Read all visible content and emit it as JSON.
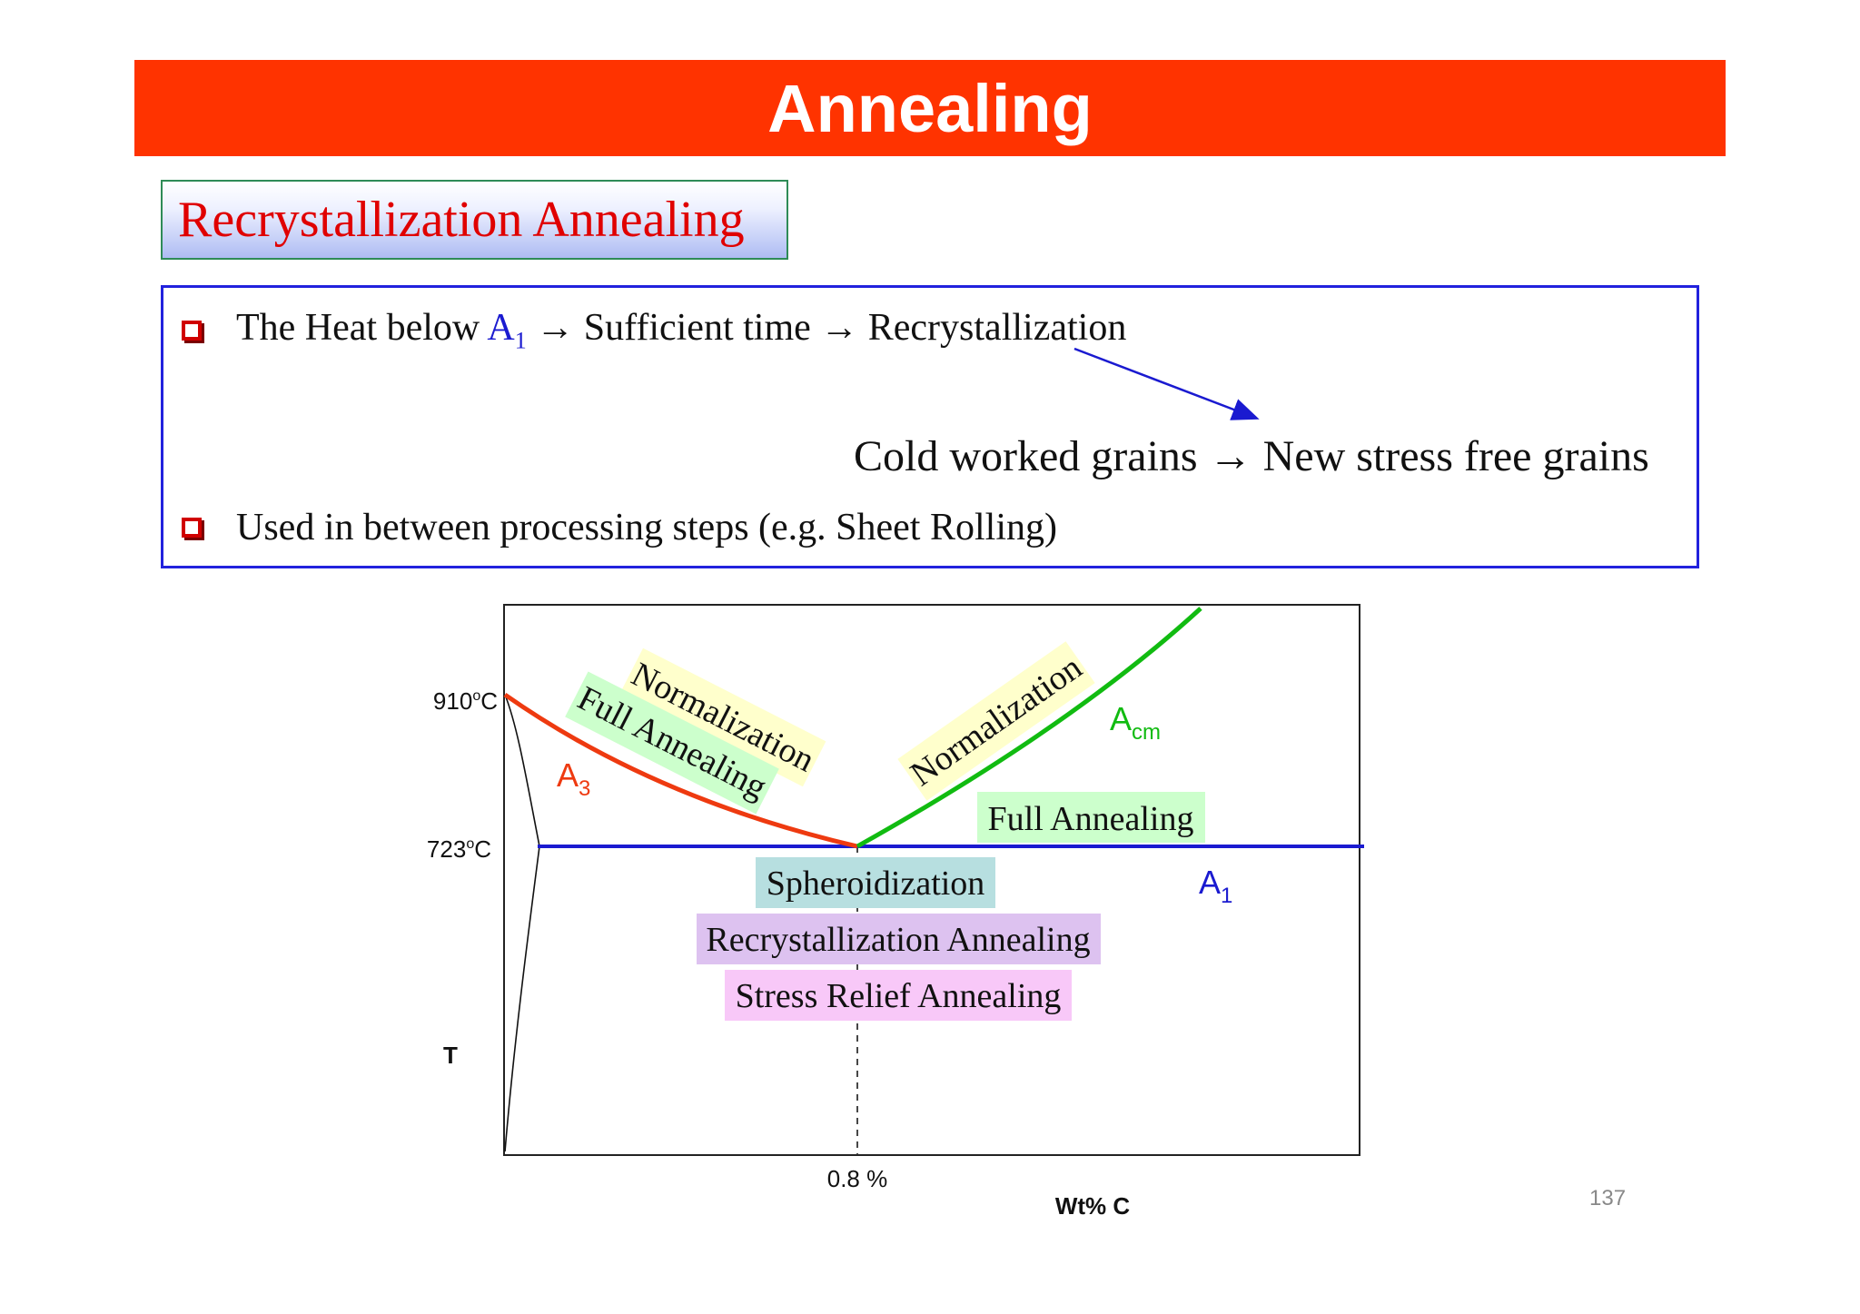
{
  "title": "Annealing",
  "subtitle": "Recrystallization Annealing",
  "bullets": {
    "b1_pre": "The Heat below ",
    "b1_a": "A",
    "b1_sub": "1",
    "b1_post": " → Sufficient time → Recrystallization",
    "result": "Cold worked grains → New stress free grains",
    "b2": "Used in between processing steps (e.g. Sheet Rolling)"
  },
  "diagram": {
    "t910": "910",
    "t723": "723",
    "deg_sup": "o",
    "deg_c": "C",
    "axis_t": "T",
    "axis_c": "Wt% C",
    "pct": "0.8 %",
    "a3_main": "A",
    "a3_sub": "3",
    "acm_main": "A",
    "acm_sub": "cm",
    "a1_main": "A",
    "a1_sub": "1",
    "norm_left": "Normalization",
    "full_left": "Full Annealing",
    "norm_right": "Normalization",
    "full_right": "Full Annealing",
    "spheroid": "Spheroidization",
    "recryst": "Recrystallization Annealing",
    "stress": "Stress Relief Annealing",
    "colors": {
      "a3": "#ee3a10",
      "acm": "#11bb11",
      "a1": "#1a1ad0",
      "yellow_box": "#ffffcc",
      "green_box": "#ccffcc",
      "teal_box": "#b7dfe0",
      "purple_box": "#ddc2f0",
      "pink_box": "#f8c8f8"
    }
  },
  "page_number": "137"
}
